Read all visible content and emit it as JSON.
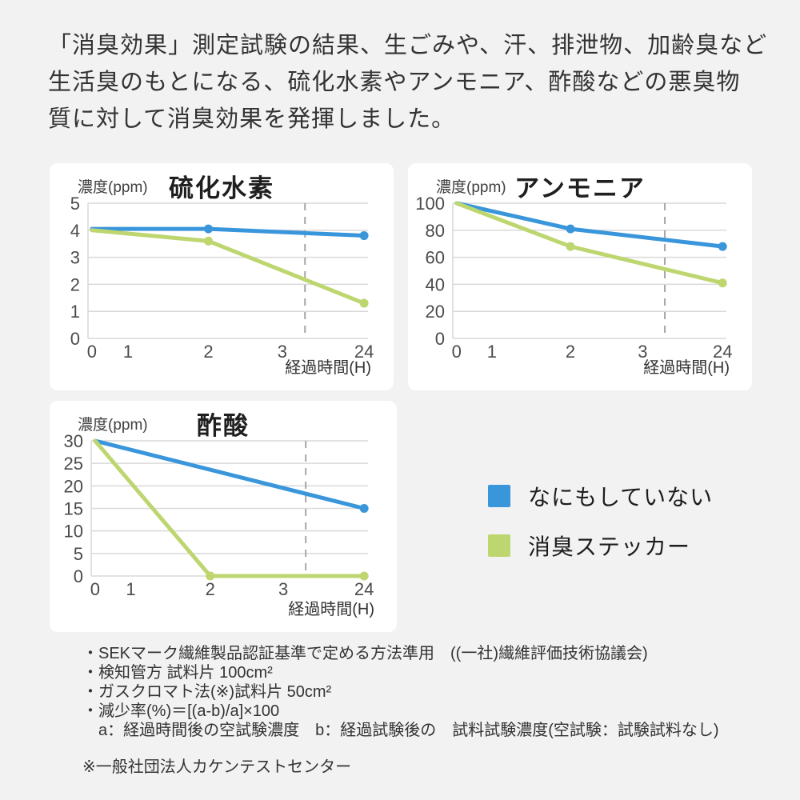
{
  "page": {
    "background": "#f2f2f2",
    "card_background": "#ffffff"
  },
  "header": {
    "lines": [
      "「消臭効果」測定試験の結果、生ごみや、汗、排泄物、加齢臭など",
      "生活臭のもとになる、硫化水素やアンモニア、酢酸などの悪臭物",
      "質に対して消臭効果を発揮しました。"
    ]
  },
  "colors": {
    "blue": "#3996db",
    "green": "#bdd66f",
    "grid": "#d9d9d9",
    "dash": "#a6a6a6",
    "tick_text": "#4b4b4b",
    "text": "#333333"
  },
  "chart_data": [
    {
      "type": "line",
      "title": "硫化水素",
      "ylabel": "濃度(ppm)",
      "xlabel": "経過時間(H)",
      "x_ticks": [
        "0",
        "1",
        "2",
        "3",
        "24"
      ],
      "y_ticks": [
        5,
        4,
        3,
        2,
        1,
        0
      ],
      "ylim": [
        0,
        5
      ],
      "grid": true,
      "axis_break_between": [
        "3",
        "24"
      ],
      "series": [
        {
          "name": "なにもしていない",
          "color": "blue",
          "x": [
            0,
            2,
            24
          ],
          "values": [
            4.05,
            4.05,
            3.8
          ],
          "markers_at": [
            2,
            24
          ]
        },
        {
          "name": "消臭ステッカー",
          "color": "green",
          "x": [
            0,
            2,
            24
          ],
          "values": [
            4.0,
            3.6,
            1.3
          ],
          "markers_at": [
            2,
            24
          ]
        }
      ]
    },
    {
      "type": "line",
      "title": "アンモニア",
      "ylabel": "濃度(ppm)",
      "xlabel": "経過時間(H)",
      "x_ticks": [
        "0",
        "1",
        "2",
        "3",
        "24"
      ],
      "y_ticks": [
        100,
        80,
        60,
        40,
        20,
        0
      ],
      "ylim": [
        0,
        100
      ],
      "grid": true,
      "axis_break_between": [
        "3",
        "24"
      ],
      "series": [
        {
          "name": "なにもしていない",
          "color": "blue",
          "x": [
            0,
            2,
            24
          ],
          "values": [
            100,
            81,
            68
          ],
          "markers_at": [
            2,
            24
          ]
        },
        {
          "name": "消臭ステッカー",
          "color": "green",
          "x": [
            0,
            2,
            24
          ],
          "values": [
            100,
            68,
            41
          ],
          "markers_at": [
            2,
            24
          ]
        }
      ]
    },
    {
      "type": "line",
      "title": "酢酸",
      "ylabel": "濃度(ppm)",
      "xlabel": "経過時間(H)",
      "x_ticks": [
        "0",
        "1",
        "2",
        "3",
        "24"
      ],
      "y_ticks": [
        30,
        25,
        20,
        15,
        10,
        5,
        0
      ],
      "ylim": [
        0,
        30
      ],
      "grid": true,
      "axis_break_between": [
        "3",
        "24"
      ],
      "series": [
        {
          "name": "なにもしていない",
          "color": "blue",
          "x": [
            0,
            24
          ],
          "values": [
            30,
            15
          ],
          "markers_at": [
            24
          ]
        },
        {
          "name": "消臭ステッカー",
          "color": "green",
          "x": [
            0,
            2,
            24
          ],
          "values": [
            30,
            0,
            0
          ],
          "markers_at": [
            2,
            24
          ]
        }
      ]
    }
  ],
  "legend": {
    "items": [
      {
        "label": "なにもしていない",
        "color": "#3996db"
      },
      {
        "label": "消臭ステッカー",
        "color": "#bdd66f"
      }
    ]
  },
  "notes": {
    "lines": [
      "・SEKマーク繊維製品認証基準で定める方法準用　((一社)繊維評価技術協議会)",
      "・検知管方 試料片 100cm²",
      "・ガスクロマト法(※)試料片 50cm²",
      "・減少率(%)＝[(a-b)/a]×100",
      "a：経過時間後の空試験濃度　b：経過試験後の　試料試験濃度(空試験：試験試料なし)"
    ],
    "source": "※一般社団法人カケンテストセンター"
  }
}
